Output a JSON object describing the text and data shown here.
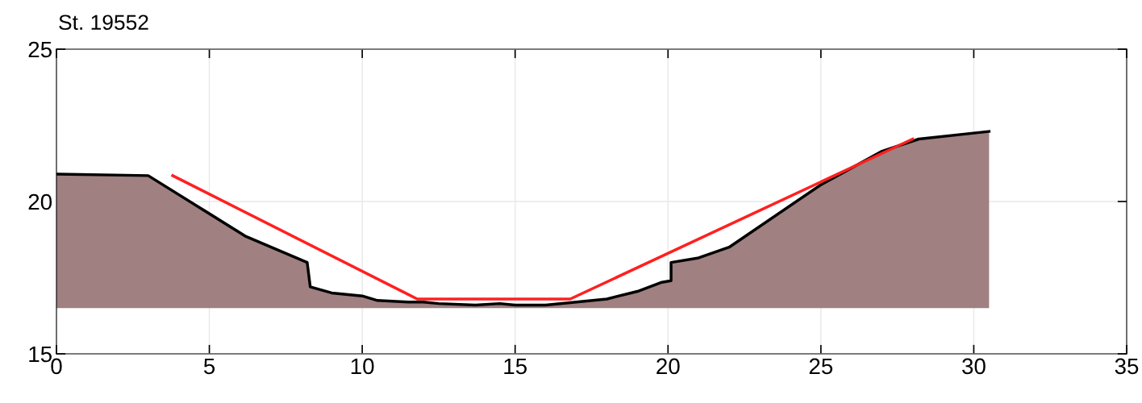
{
  "chart_data": {
    "type": "line",
    "title": "St. 19552",
    "xlim": [
      0,
      35
    ],
    "xticks": [
      0,
      5,
      10,
      15,
      20,
      25,
      30,
      35
    ],
    "ylim": [
      15,
      25
    ],
    "yticks": [
      15,
      20,
      25
    ],
    "grid": true,
    "legend": false,
    "marker": "none",
    "line_style": "solid",
    "series": [
      {
        "color": "#000000",
        "x": [
          0,
          3.0,
          6.2,
          8.2,
          8.3,
          9,
          10,
          10.5,
          11.5,
          12,
          12.5,
          13.7,
          14.5,
          15,
          16,
          17,
          18,
          19,
          19.8,
          20.1,
          20.1,
          21,
          22,
          25,
          27,
          28.2,
          30.5
        ],
        "values": [
          20.9,
          20.85,
          18.85,
          18.0,
          17.2,
          17.0,
          16.9,
          16.75,
          16.7,
          16.7,
          16.65,
          16.6,
          16.65,
          16.6,
          16.6,
          16.7,
          16.8,
          17.05,
          17.35,
          17.4,
          18.0,
          18.15,
          18.5,
          20.55,
          21.65,
          22.05,
          22.3
        ],
        "lower": [
          16.5,
          16.5,
          16.5,
          16.5,
          16.5,
          16.5,
          16.5,
          16.5,
          16.5,
          16.5,
          16.5,
          16.5,
          16.5,
          16.5,
          16.5,
          16.5,
          16.5,
          16.5,
          16.5,
          16.5,
          16.5,
          16.5,
          16.5,
          16.5,
          16.5,
          16.5,
          16.5
        ],
        "upper": [
          20.9,
          20.85,
          18.85,
          18.0,
          17.2,
          17.0,
          16.9,
          16.75,
          16.7,
          16.7,
          16.65,
          16.6,
          16.65,
          16.6,
          16.6,
          16.7,
          16.8,
          17.05,
          17.35,
          17.4,
          18.0,
          18.15,
          18.5,
          20.55,
          21.65,
          22.05,
          22.3
        ]
      },
      {
        "color": "#ff2020",
        "x": [
          3.8,
          11.8,
          16.8,
          28.0
        ],
        "values": [
          20.85,
          16.8,
          16.8,
          22.05
        ]
      }
    ]
  }
}
